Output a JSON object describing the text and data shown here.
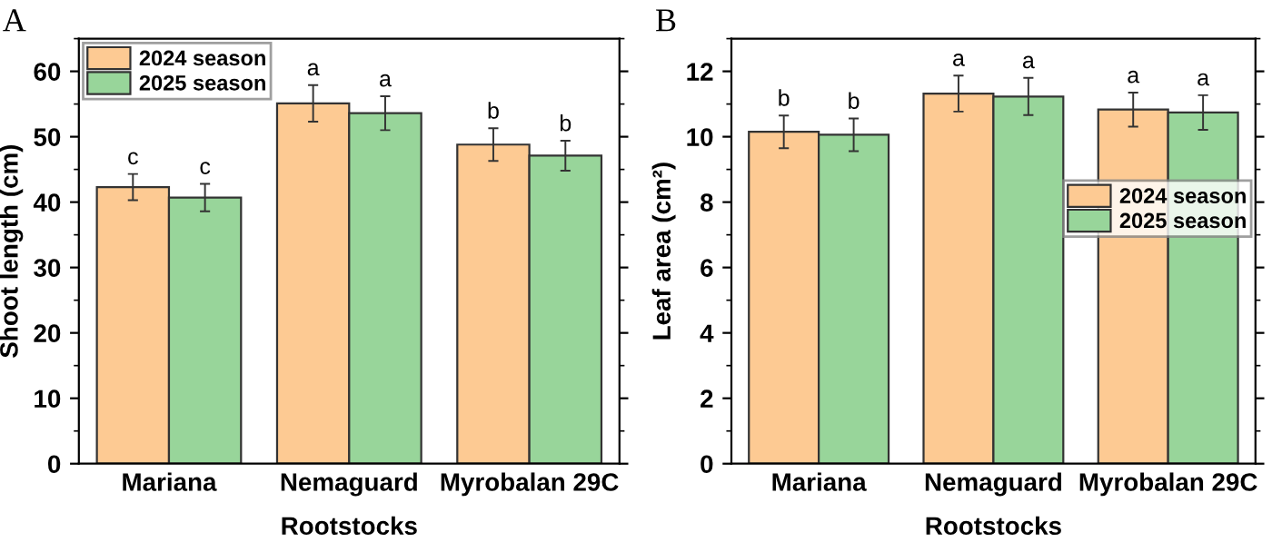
{
  "chart_data": [
    {
      "type": "bar",
      "title": "A",
      "xlabel": "Rootstocks",
      "ylabel": "Shoot length (cm)",
      "categories": [
        "Mariana",
        "Nemaguard",
        "Myrobalan 29C"
      ],
      "series": [
        {
          "name": "2024 season",
          "color": "#fdca93",
          "values": [
            42.3,
            55.1,
            48.8
          ],
          "errors": [
            2.0,
            2.8,
            2.5
          ]
        },
        {
          "name": "2025 season",
          "color": "#98d59a",
          "values": [
            40.7,
            53.6,
            47.1
          ],
          "errors": [
            2.1,
            2.6,
            2.3
          ]
        }
      ],
      "ylim": [
        0,
        65
      ],
      "yticks": [
        0,
        10,
        20,
        30,
        40,
        50,
        60
      ],
      "legend": "top left",
      "grid": false,
      "annotations": [
        "c",
        "c",
        "a",
        "a",
        "b",
        "b"
      ]
    },
    {
      "type": "bar",
      "title": "B",
      "xlabel": "Rootstocks",
      "ylabel": "Leaf area (cm²)",
      "categories": [
        "Mariana",
        "Nemaguard",
        "Myrobalan 29C"
      ],
      "series": [
        {
          "name": "2024 season",
          "color": "#fdca93",
          "values": [
            10.15,
            11.32,
            10.83
          ],
          "errors": [
            0.5,
            0.55,
            0.52
          ]
        },
        {
          "name": "2025 season",
          "color": "#98d59a",
          "values": [
            10.06,
            11.23,
            10.74
          ],
          "errors": [
            0.5,
            0.57,
            0.53
          ]
        }
      ],
      "ylim": [
        0,
        13
      ],
      "yticks": [
        0,
        2,
        4,
        6,
        8,
        10,
        12
      ],
      "legend": "right",
      "grid": false,
      "annotations": [
        "b",
        "b",
        "a",
        "a",
        "a",
        "a"
      ]
    }
  ]
}
